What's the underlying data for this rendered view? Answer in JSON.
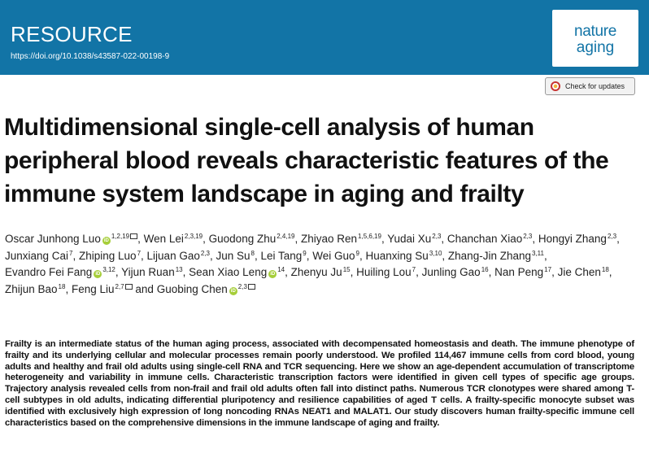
{
  "banner": {
    "label": "RESOURCE",
    "doi": "https://doi.org/10.1038/s43587-022-00198-9",
    "logo_line1": "nature",
    "logo_line2": "aging",
    "brand_color": "#1274a6"
  },
  "check_updates": {
    "label": "Check for updates",
    "icon": "crossmark-icon"
  },
  "title": "Multidimensional single-cell analysis of human peripheral blood reveals characteristic features of the immune system landscape in aging and frailty",
  "authors": [
    {
      "name": "Oscar Junhong Luo",
      "aff": "1,2,19",
      "orcid": true,
      "mail": true
    },
    {
      "name": "Wen Lei",
      "aff": "2,3,19"
    },
    {
      "name": "Guodong Zhu",
      "aff": "2,4,19"
    },
    {
      "name": "Zhiyao Ren",
      "aff": "1,5,6,19"
    },
    {
      "name": "Yudai Xu",
      "aff": "2,3"
    },
    {
      "name": "Chanchan Xiao",
      "aff": "2,3"
    },
    {
      "name": "Hongyi Zhang",
      "aff": "2,3"
    },
    {
      "name": "Junxiang Cai",
      "aff": "7"
    },
    {
      "name": "Zhiping Luo",
      "aff": "7"
    },
    {
      "name": "Lijuan Gao",
      "aff": "2,3"
    },
    {
      "name": "Jun Su",
      "aff": "8"
    },
    {
      "name": "Lei Tang",
      "aff": "9"
    },
    {
      "name": "Wei Guo",
      "aff": "9"
    },
    {
      "name": "Huanxing Su",
      "aff": "3,10"
    },
    {
      "name": "Zhang-Jin Zhang",
      "aff": "3,11"
    },
    {
      "name": "Evandro Fei Fang",
      "aff": "3,12",
      "orcid": true
    },
    {
      "name": "Yijun Ruan",
      "aff": "13"
    },
    {
      "name": "Sean Xiao Leng",
      "aff": "14",
      "orcid": true
    },
    {
      "name": "Zhenyu Ju",
      "aff": "15"
    },
    {
      "name": "Huiling Lou",
      "aff": "7"
    },
    {
      "name": "Junling Gao",
      "aff": "16"
    },
    {
      "name": "Nan Peng",
      "aff": "17"
    },
    {
      "name": "Jie Chen",
      "aff": "18"
    },
    {
      "name": "Zhijun Bao",
      "aff": "18"
    },
    {
      "name": "Feng Liu",
      "aff": "2,7",
      "mail": true
    },
    {
      "name": "Guobing Chen",
      "aff": "2,3",
      "orcid": true,
      "mail": true
    }
  ],
  "authors_and": "and",
  "abstract": "Frailty is an intermediate status of the human aging process, associated with decompensated homeostasis and death. The immune phenotype of frailty and its underlying cellular and molecular processes remain poorly understood. We profiled 114,467 immune cells from cord blood, young adults and healthy and frail old adults using single-cell RNA and TCR sequencing. Here we show an age-dependent accumulation of transcriptome heterogeneity and variability in immune cells. Characteristic transcription factors were identified in given cell types of specific age groups. Trajectory analysis revealed cells from non-frail and frail old adults often fall into distinct paths. Numerous TCR clonotypes were shared among T-cell subtypes in old adults, indicating differential pluripotency and resilience capabilities of aged T cells. A frailty-specific monocyte subset was identified with exclusively high expression of long noncoding RNAs NEAT1 and MALAT1. Our study discovers human frailty-specific immune cell characteristics based on the comprehensive dimensions in the immune landscape of aging and frailty."
}
